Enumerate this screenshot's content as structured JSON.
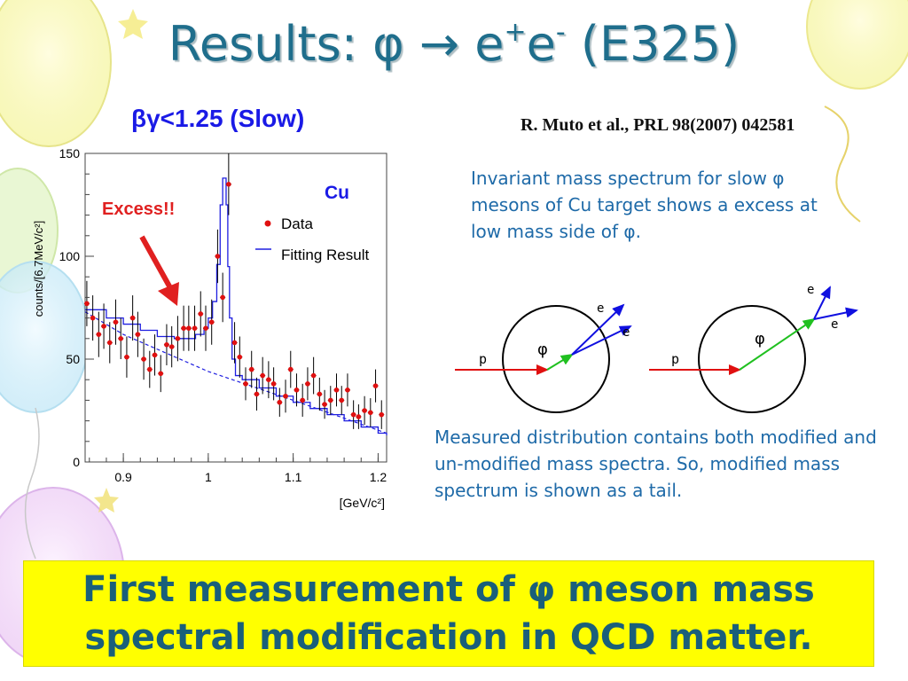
{
  "slide": {
    "title_prefix": "Results: ",
    "title_phi": "φ",
    "title_arrow": " → ",
    "title_e1": "e",
    "title_plus": "+",
    "title_e2": "e",
    "title_minus": "-",
    "title_suffix": " (E325)",
    "subtitle_beta": "β",
    "subtitle_gamma": "γ",
    "subtitle_rest": "<1.25 (Slow)",
    "citation": "R. Muto et al., PRL 98(2007) 042581",
    "description1_a": "Invariant mass spectrum for slow ",
    "description1_phi": "φ",
    "description1_b": " mesons of Cu target shows a excess at low mass side of ",
    "description1_phi2": "φ",
    "description1_c": ".",
    "description2": "Measured distribution contains both modified and un-modified mass spectra. So, modified mass spectrum is shown as a tail.",
    "banner_line1_a": "First measurement of ",
    "banner_phi": "φ",
    "banner_line1_b": " meson mass",
    "banner_line2": "spectral modification in QCD matter.",
    "colors": {
      "title": "#1f6e8c",
      "subtitle": "#1a1ae6",
      "description": "#1e6aa8",
      "banner_bg": "#ffff00",
      "banner_text": "#1a5f7a",
      "excess": "#e02020",
      "fit_line": "#1e1ee0",
      "data_point": "#e01010"
    }
  },
  "chart_data": {
    "type": "scatter",
    "ylabel": "counts/[6.7MeV/c²]",
    "xlabel": "[GeV/c²]",
    "target_label": "Cu",
    "excess_label": "Excess!!",
    "xlim": [
      0.855,
      1.21
    ],
    "ylim": [
      0,
      150
    ],
    "x_ticks": [
      "0.9",
      "1",
      "1.1",
      "1.2"
    ],
    "y_ticks": [
      "0",
      "50",
      "100",
      "150"
    ],
    "legend": [
      "Data",
      "Fitting Result"
    ],
    "legend_placement": "top-right",
    "series": [
      {
        "name": "Data",
        "x": [
          0.857,
          0.864,
          0.871,
          0.877,
          0.884,
          0.891,
          0.897,
          0.904,
          0.911,
          0.917,
          0.924,
          0.931,
          0.937,
          0.944,
          0.951,
          0.957,
          0.964,
          0.971,
          0.977,
          0.984,
          0.991,
          0.997,
          1.004,
          1.011,
          1.017,
          1.024,
          1.031,
          1.037,
          1.044,
          1.051,
          1.057,
          1.064,
          1.071,
          1.077,
          1.084,
          1.091,
          1.097,
          1.104,
          1.111,
          1.117,
          1.124,
          1.131,
          1.137,
          1.144,
          1.151,
          1.157,
          1.164,
          1.171,
          1.177,
          1.184,
          1.191,
          1.197,
          1.204
        ],
        "y": [
          77,
          70,
          62,
          66,
          58,
          68,
          60,
          51,
          70,
          62,
          50,
          45,
          52,
          43,
          57,
          56,
          60,
          65,
          65,
          65,
          72,
          65,
          68,
          100,
          80,
          135,
          58,
          51,
          38,
          45,
          33,
          42,
          40,
          38,
          29,
          32,
          45,
          35,
          30,
          38,
          42,
          33,
          28,
          30,
          35,
          30,
          35,
          23,
          22,
          25,
          24,
          37,
          23
        ],
        "err": [
          11,
          11,
          11,
          11,
          10,
          11,
          10,
          10,
          11,
          11,
          10,
          9,
          10,
          9,
          10,
          10,
          11,
          11,
          11,
          11,
          11,
          11,
          11,
          13,
          12,
          15,
          10,
          10,
          8,
          9,
          8,
          9,
          9,
          8,
          7,
          8,
          9,
          8,
          8,
          8,
          9,
          8,
          7,
          7,
          8,
          7,
          8,
          7,
          6,
          7,
          7,
          8,
          7
        ]
      },
      {
        "name": "Fitting Result",
        "x": [
          0.855,
          0.88,
          0.9,
          0.92,
          0.94,
          0.96,
          0.975,
          0.985,
          0.995,
          1.0,
          1.005,
          1.01,
          1.014,
          1.017,
          1.019,
          1.021,
          1.023,
          1.025,
          1.028,
          1.032,
          1.04,
          1.06,
          1.08,
          1.1,
          1.12,
          1.14,
          1.16,
          1.18,
          1.2,
          1.21
        ],
        "y": [
          74,
          70,
          67,
          64,
          61,
          60,
          60,
          62,
          65,
          70,
          78,
          96,
          125,
          138,
          138,
          125,
          95,
          70,
          50,
          42,
          40,
          36,
          32,
          29,
          26,
          23,
          20,
          17,
          14,
          13
        ]
      },
      {
        "name": "background",
        "x": [
          0.855,
          0.9,
          1.0,
          1.1,
          1.21
        ],
        "y": [
          73,
          62,
          44,
          30,
          14
        ]
      }
    ]
  },
  "diagram": {
    "left": {
      "p_label": "p",
      "phi_label": "φ",
      "e_top": "e",
      "e_bottom": "e"
    },
    "right": {
      "p_label": "p",
      "phi_label": "φ",
      "e_top": "e",
      "e_bottom": "e"
    }
  }
}
